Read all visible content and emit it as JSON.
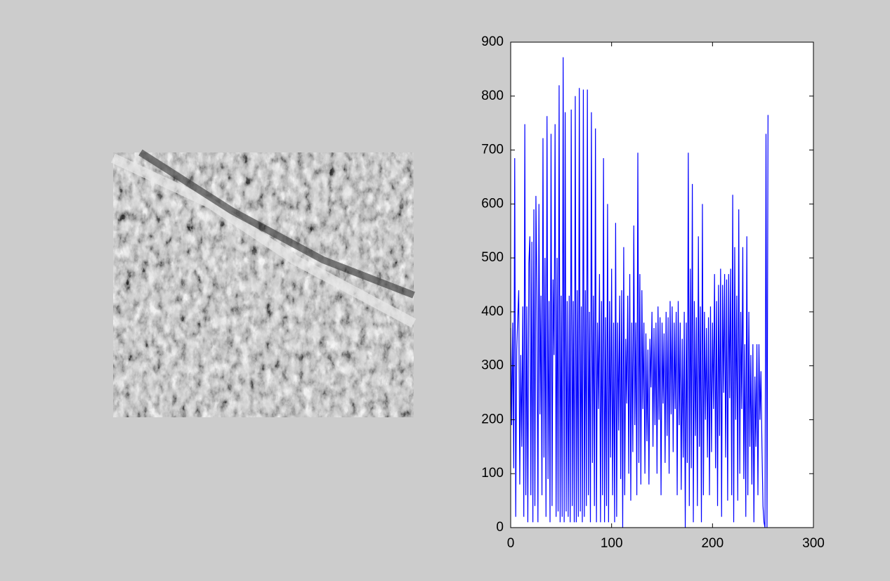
{
  "chart_data": {
    "type": "line",
    "x": [
      0,
      1,
      2,
      3,
      4,
      5,
      6,
      7,
      8,
      9,
      10,
      11,
      12,
      13,
      14,
      15,
      16,
      17,
      18,
      19,
      20,
      21,
      22,
      23,
      24,
      25,
      26,
      27,
      28,
      29,
      30,
      31,
      32,
      33,
      34,
      35,
      36,
      37,
      38,
      39,
      40,
      41,
      42,
      43,
      44,
      45,
      46,
      47,
      48,
      49,
      50,
      51,
      52,
      53,
      54,
      55,
      56,
      57,
      58,
      59,
      60,
      61,
      62,
      63,
      64,
      65,
      66,
      67,
      68,
      69,
      70,
      71,
      72,
      73,
      74,
      75,
      76,
      77,
      78,
      79,
      80,
      81,
      82,
      83,
      84,
      85,
      86,
      87,
      88,
      89,
      90,
      91,
      92,
      93,
      94,
      95,
      96,
      97,
      98,
      99,
      100,
      101,
      102,
      103,
      104,
      105,
      106,
      107,
      108,
      109,
      110,
      111,
      112,
      113,
      114,
      115,
      116,
      117,
      118,
      119,
      120,
      121,
      122,
      123,
      124,
      125,
      126,
      127,
      128,
      129,
      130,
      131,
      132,
      133,
      134,
      135,
      136,
      137,
      138,
      139,
      140,
      141,
      142,
      143,
      144,
      145,
      146,
      147,
      148,
      149,
      150,
      151,
      152,
      153,
      154,
      155,
      156,
      157,
      158,
      159,
      160,
      161,
      162,
      163,
      164,
      165,
      166,
      167,
      168,
      169,
      170,
      171,
      172,
      173,
      174,
      175,
      176,
      177,
      178,
      179,
      180,
      181,
      182,
      183,
      184,
      185,
      186,
      187,
      188,
      189,
      190,
      191,
      192,
      193,
      194,
      195,
      196,
      197,
      198,
      199,
      200,
      201,
      202,
      203,
      204,
      205,
      206,
      207,
      208,
      209,
      210,
      211,
      212,
      213,
      214,
      215,
      216,
      217,
      218,
      219,
      220,
      221,
      222,
      223,
      224,
      225,
      226,
      227,
      228,
      229,
      230,
      231,
      232,
      233,
      234,
      235,
      236,
      237,
      238,
      239,
      240,
      241,
      242,
      243,
      244,
      245,
      246,
      247,
      248,
      249,
      250,
      251,
      252,
      253,
      254,
      255
    ],
    "series": [
      {
        "color": "#0000ff",
        "values": [
          370,
          190,
          380,
          110,
          685,
          20,
          330,
          390,
          440,
          80,
          320,
          150,
          410,
          20,
          748,
          60,
          410,
          10,
          490,
          540,
          60,
          530,
          10,
          590,
          40,
          615,
          430,
          10,
          600,
          210,
          430,
          60,
          722,
          130,
          500,
          20,
          763,
          90,
          420,
          10,
          730,
          40,
          460,
          320,
          748,
          20,
          500,
          30,
          820,
          10,
          430,
          20,
          872,
          10,
          770,
          30,
          420,
          20,
          430,
          10,
          775,
          40,
          420,
          10,
          800,
          10,
          440,
          20,
          815,
          30,
          410,
          10,
          812,
          20,
          440,
          40,
          812,
          60,
          400,
          10,
          770,
          120,
          430,
          40,
          740,
          10,
          380,
          220,
          470,
          10,
          420,
          60,
          685,
          10,
          390,
          40,
          600,
          10,
          420,
          130,
          480,
          60,
          380,
          10,
          565,
          20,
          380,
          180,
          430,
          90,
          440,
          0,
          520,
          60,
          350,
          230,
          430,
          100,
          470,
          50,
          380,
          140,
          560,
          190,
          380,
          60,
          695,
          120,
          470,
          80,
          440,
          220,
          380,
          100,
          360,
          160,
          330,
          80,
          350,
          260,
          400,
          150,
          370,
          190,
          380,
          100,
          410,
          200,
          390,
          60,
          380,
          230,
          360,
          120,
          400,
          170,
          390,
          100,
          420,
          210,
          410,
          140,
          380,
          220,
          400,
          60,
          420,
          190,
          380,
          70,
          350,
          130,
          400,
          0,
          380,
          120,
          695,
          40,
          480,
          110,
          637,
          10,
          420,
          170,
          390,
          40,
          540,
          150,
          410,
          10,
          600,
          60,
          400,
          200,
          370,
          130,
          390,
          60,
          410,
          140,
          380,
          220,
          470,
          110,
          420,
          40,
          450,
          170,
          480,
          20,
          450,
          250,
          470,
          130,
          460,
          50,
          470,
          240,
          480,
          60,
          617,
          10,
          520,
          200,
          430,
          50,
          590,
          100,
          400,
          220,
          520,
          90,
          340,
          20,
          540,
          60,
          400,
          150,
          320,
          80,
          340,
          10,
          280,
          150,
          340,
          60,
          340,
          200,
          290,
          150,
          40,
          10,
          0,
          730,
          0,
          765
        ]
      }
    ],
    "xlim": [
      0,
      300
    ],
    "xticks": [
      0,
      100,
      200,
      300
    ],
    "ylim": [
      0,
      900
    ],
    "yticks": [
      0,
      100,
      200,
      300,
      400,
      500,
      600,
      700,
      800,
      900
    ],
    "box": true
  }
}
